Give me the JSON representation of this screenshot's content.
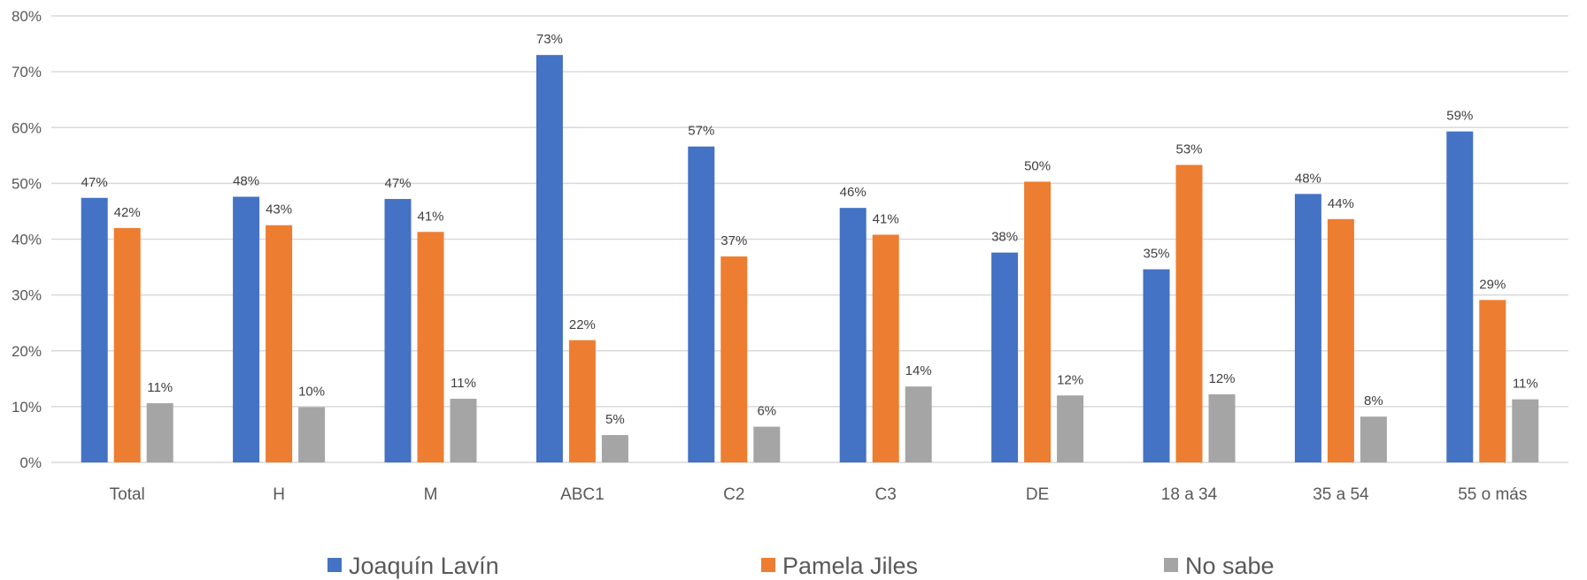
{
  "chart_data": {
    "type": "bar",
    "categories": [
      "Total",
      "H",
      "M",
      "ABC1",
      "C2",
      "C3",
      "DE",
      "18 a 34",
      "35 a 54",
      "55 o más"
    ],
    "series": [
      {
        "name": "Joaquín Lavín",
        "color": "#4472c4",
        "values": [
          47.4,
          47.6,
          47.2,
          73.0,
          56.6,
          45.6,
          37.6,
          34.6,
          48.1,
          59.3
        ]
      },
      {
        "name": "Pamela Jiles",
        "color": "#ed7d31",
        "values": [
          42.0,
          42.5,
          41.3,
          21.9,
          36.9,
          40.8,
          50.3,
          53.3,
          43.6,
          29.1
        ]
      },
      {
        "name": "No sabe",
        "color": "#a5a5a5",
        "values": [
          10.6,
          9.9,
          11.4,
          4.9,
          6.4,
          13.6,
          12.0,
          12.2,
          8.2,
          11.3
        ]
      }
    ],
    "data_labels": [
      [
        "47%",
        "48%",
        "47%",
        "73%",
        "57%",
        "46%",
        "38%",
        "35%",
        "48%",
        "59%"
      ],
      [
        "42%",
        "43%",
        "41%",
        "22%",
        "37%",
        "41%",
        "50%",
        "53%",
        "44%",
        "29%"
      ],
      [
        "11%",
        "10%",
        "11%",
        "5%",
        "6%",
        "14%",
        "12%",
        "12%",
        "8%",
        "11%"
      ]
    ],
    "ylim": [
      0,
      80
    ],
    "yticks": [
      0,
      10,
      20,
      30,
      40,
      50,
      60,
      70,
      80
    ],
    "ytick_labels": [
      "0%",
      "10%",
      "20%",
      "30%",
      "40%",
      "50%",
      "60%",
      "70%",
      "80%"
    ],
    "grid": true,
    "legend_position": "bottom"
  }
}
